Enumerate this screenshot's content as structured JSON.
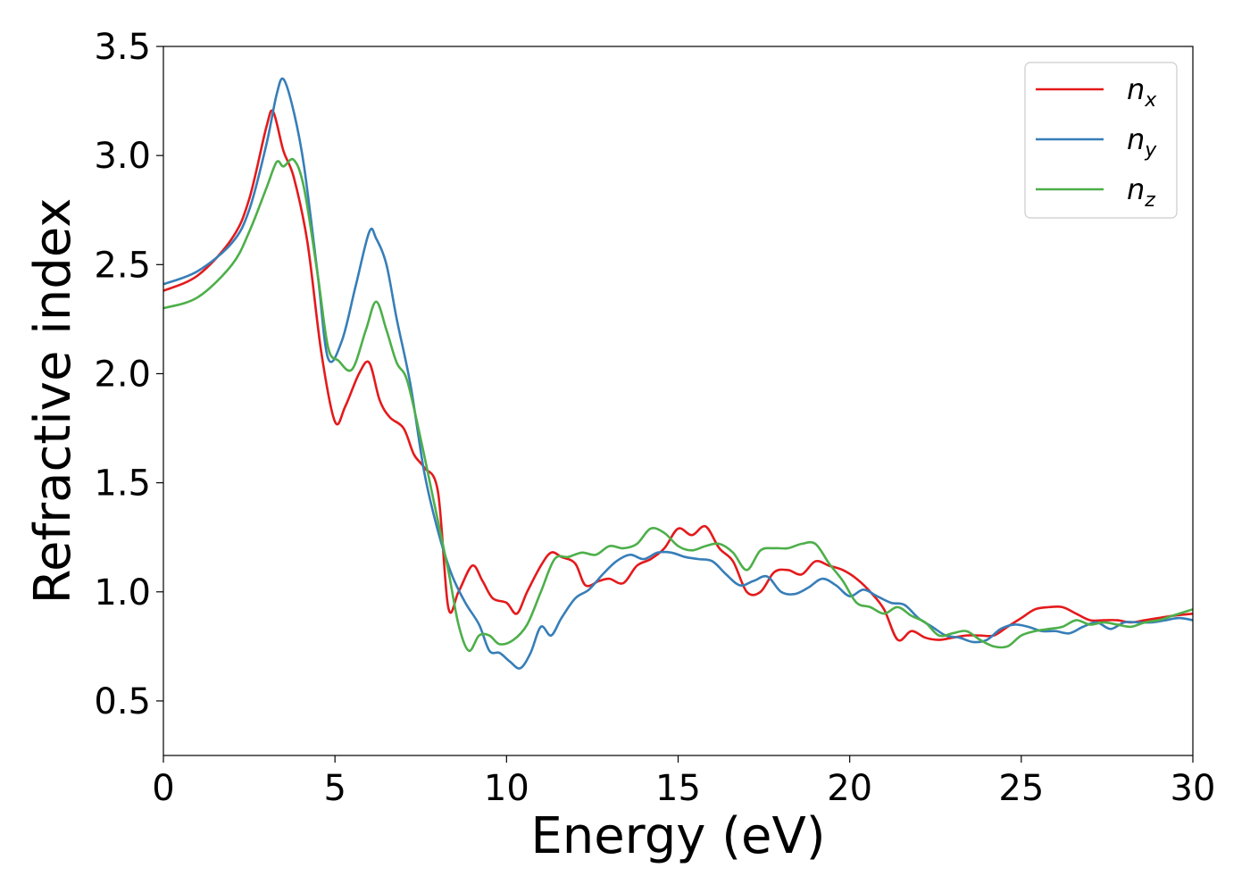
{
  "chart_data": {
    "type": "line",
    "xlabel": "Energy (eV)",
    "ylabel": "Refractive index",
    "xlim": [
      0,
      30
    ],
    "ylim": [
      0.25,
      3.5
    ],
    "x_ticks": [
      "0",
      "5",
      "10",
      "15",
      "20",
      "25",
      "30"
    ],
    "y_ticks": [
      "0.5",
      "1.0",
      "1.5",
      "2.0",
      "2.5",
      "3.0",
      "3.5"
    ],
    "grid": false,
    "legend_position": "top-right",
    "series": [
      {
        "name": "n",
        "subscript": "x",
        "color": "#e41a1c",
        "x": [
          0,
          1,
          2,
          2.5,
          3,
          3.2,
          3.5,
          3.8,
          4.2,
          4.6,
          5,
          5.3,
          5.7,
          6,
          6.3,
          6.6,
          7,
          7.3,
          7.6,
          8,
          8.3,
          8.6,
          9,
          9.3,
          9.6,
          10,
          10.3,
          10.6,
          11,
          11.3,
          11.6,
          12,
          12.3,
          12.7,
          13,
          13.4,
          13.8,
          14.2,
          14.6,
          15,
          15.4,
          15.8,
          16.2,
          16.6,
          17,
          17.4,
          17.8,
          18.2,
          18.6,
          19,
          19.4,
          19.8,
          20.2,
          20.6,
          21,
          21.4,
          21.8,
          22.2,
          22.6,
          23,
          23.4,
          23.8,
          24.2,
          24.6,
          25,
          25.4,
          25.8,
          26.2,
          26.6,
          27,
          27.4,
          27.8,
          28.2,
          28.6,
          29,
          29.4,
          30
        ],
        "y": [
          2.38,
          2.45,
          2.62,
          2.8,
          3.13,
          3.2,
          3.02,
          2.9,
          2.6,
          2.1,
          1.78,
          1.85,
          2.0,
          2.05,
          1.88,
          1.8,
          1.75,
          1.63,
          1.57,
          1.46,
          0.93,
          1.0,
          1.12,
          1.05,
          0.97,
          0.95,
          0.9,
          1.0,
          1.12,
          1.18,
          1.16,
          1.13,
          1.03,
          1.05,
          1.06,
          1.04,
          1.12,
          1.15,
          1.2,
          1.29,
          1.26,
          1.3,
          1.2,
          1.14,
          1.0,
          1.0,
          1.09,
          1.1,
          1.08,
          1.14,
          1.12,
          1.1,
          1.06,
          1.0,
          0.92,
          0.78,
          0.82,
          0.79,
          0.78,
          0.79,
          0.8,
          0.8,
          0.8,
          0.84,
          0.88,
          0.92,
          0.93,
          0.93,
          0.9,
          0.87,
          0.87,
          0.87,
          0.86,
          0.87,
          0.88,
          0.89,
          0.9
        ]
      },
      {
        "name": "n",
        "subscript": "y",
        "color": "#377eb8",
        "x": [
          0,
          1,
          2,
          2.5,
          3,
          3.3,
          3.5,
          3.8,
          4.1,
          4.5,
          4.8,
          5.2,
          5.6,
          6,
          6.2,
          6.5,
          6.8,
          7.2,
          7.6,
          8,
          8.4,
          8.8,
          9.2,
          9.5,
          9.8,
          10.1,
          10.4,
          10.7,
          11,
          11.3,
          11.6,
          12,
          12.4,
          12.8,
          13.2,
          13.6,
          14,
          14.4,
          14.8,
          15.2,
          15.6,
          16,
          16.4,
          16.8,
          17.2,
          17.6,
          18,
          18.4,
          18.8,
          19.2,
          19.6,
          20,
          20.4,
          20.8,
          21.2,
          21.6,
          22,
          22.4,
          22.8,
          23.2,
          23.6,
          24,
          24.4,
          24.8,
          25.2,
          25.6,
          26,
          26.4,
          26.8,
          27.2,
          27.6,
          28,
          28.4,
          28.8,
          29.2,
          29.6,
          30
        ],
        "y": [
          2.41,
          2.47,
          2.6,
          2.75,
          3.05,
          3.28,
          3.35,
          3.2,
          2.95,
          2.45,
          2.07,
          2.15,
          2.4,
          2.65,
          2.62,
          2.5,
          2.25,
          1.95,
          1.55,
          1.28,
          1.08,
          0.95,
          0.85,
          0.73,
          0.72,
          0.68,
          0.65,
          0.72,
          0.84,
          0.8,
          0.88,
          0.97,
          1.01,
          1.08,
          1.14,
          1.17,
          1.15,
          1.18,
          1.18,
          1.16,
          1.15,
          1.14,
          1.08,
          1.03,
          1.05,
          1.07,
          1.0,
          0.99,
          1.02,
          1.06,
          1.03,
          0.98,
          1.01,
          0.98,
          0.95,
          0.94,
          0.88,
          0.84,
          0.8,
          0.79,
          0.77,
          0.78,
          0.83,
          0.85,
          0.84,
          0.82,
          0.82,
          0.81,
          0.84,
          0.86,
          0.83,
          0.86,
          0.86,
          0.86,
          0.87,
          0.88,
          0.87
        ]
      },
      {
        "name": "n",
        "subscript": "z",
        "color": "#4daf4a",
        "x": [
          0,
          1,
          2,
          2.5,
          3,
          3.3,
          3.5,
          3.8,
          4.1,
          4.5,
          4.8,
          5.1,
          5.5,
          5.9,
          6.2,
          6.5,
          6.8,
          7.1,
          7.5,
          7.9,
          8.3,
          8.6,
          8.9,
          9.2,
          9.5,
          9.8,
          10.2,
          10.6,
          11,
          11.4,
          11.8,
          12.2,
          12.6,
          13,
          13.4,
          13.8,
          14.2,
          14.6,
          15,
          15.4,
          15.8,
          16.2,
          16.6,
          17,
          17.4,
          17.8,
          18.2,
          18.6,
          19,
          19.4,
          19.8,
          20.2,
          20.6,
          21,
          21.4,
          21.8,
          22.2,
          22.6,
          23,
          23.4,
          23.8,
          24.2,
          24.6,
          25,
          25.4,
          25.8,
          26.2,
          26.6,
          27,
          27.4,
          27.8,
          28.2,
          28.6,
          29,
          29.4,
          30
        ],
        "y": [
          2.3,
          2.35,
          2.5,
          2.65,
          2.85,
          2.97,
          2.95,
          2.98,
          2.85,
          2.45,
          2.12,
          2.06,
          2.02,
          2.2,
          2.33,
          2.2,
          2.05,
          1.97,
          1.7,
          1.4,
          1.1,
          0.85,
          0.73,
          0.8,
          0.8,
          0.76,
          0.78,
          0.85,
          1.0,
          1.15,
          1.16,
          1.18,
          1.17,
          1.21,
          1.2,
          1.22,
          1.29,
          1.27,
          1.21,
          1.19,
          1.21,
          1.22,
          1.18,
          1.1,
          1.19,
          1.2,
          1.2,
          1.22,
          1.22,
          1.13,
          1.05,
          0.95,
          0.93,
          0.9,
          0.93,
          0.89,
          0.86,
          0.8,
          0.81,
          0.82,
          0.78,
          0.75,
          0.75,
          0.8,
          0.82,
          0.83,
          0.84,
          0.87,
          0.85,
          0.86,
          0.85,
          0.84,
          0.86,
          0.87,
          0.89,
          0.92
        ]
      }
    ]
  }
}
